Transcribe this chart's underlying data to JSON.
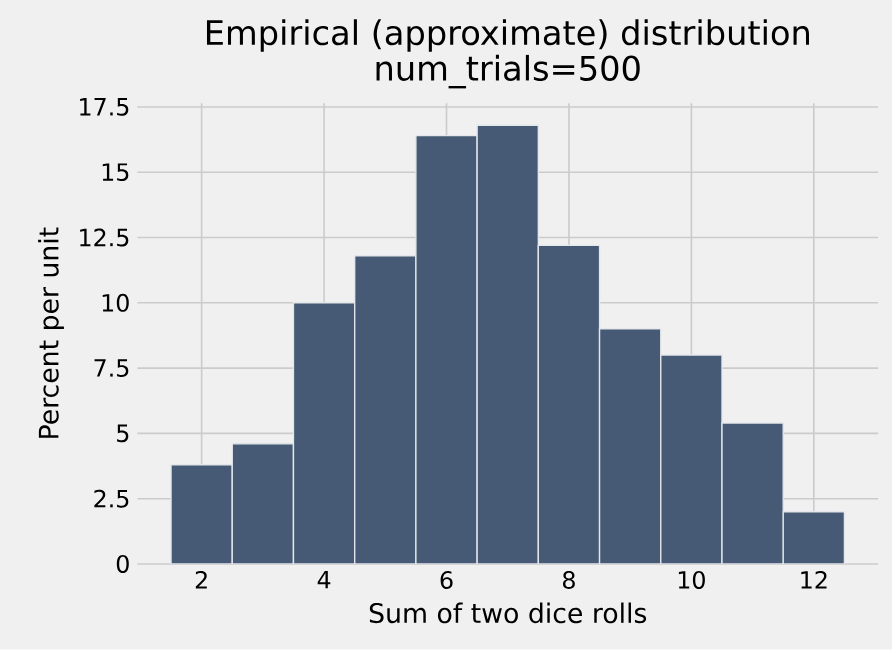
{
  "chart_data": {
    "type": "histogram",
    "title": "Empirical (approximate) distribution",
    "subtitle": "num_trials=500",
    "xlabel": "Sum of two dice rolls",
    "ylabel": "Percent per unit",
    "bins": [
      1.5,
      2.5,
      3.5,
      4.5,
      5.5,
      6.5,
      7.5,
      8.5,
      9.5,
      10.5,
      11.5,
      12.5
    ],
    "values": [
      3.8,
      4.6,
      10.0,
      11.8,
      16.4,
      16.8,
      12.2,
      9.0,
      8.0,
      5.4,
      2.0
    ],
    "color": "#465a75",
    "xlim": [
      0.95,
      13.05
    ],
    "xticks": [
      2,
      4,
      6,
      8,
      10,
      12
    ],
    "ylim": [
      0,
      17.64
    ],
    "yticks": [
      0,
      2.5,
      5,
      7.5,
      10,
      12.5,
      15,
      17.5
    ],
    "grid": true
  }
}
